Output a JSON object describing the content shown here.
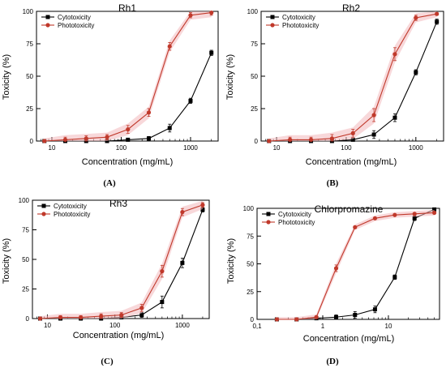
{
  "colors": {
    "cytotoxicity": "#000000",
    "phototoxicity": "#c0392b",
    "error_band": "#f2b8bc"
  },
  "chart_data": [
    {
      "type": "line",
      "panel_label": "(A)",
      "title": "Rh1",
      "xlabel": "Concentration (mg/mL)",
      "ylabel": "Toxicity (%)",
      "x_scale": "log",
      "xlim": [
        6,
        2500
      ],
      "ylim": [
        0,
        100
      ],
      "x_ticks": [
        10,
        100,
        1000
      ],
      "x_tick_labels": [
        "10",
        "100",
        "1000"
      ],
      "y_ticks": [
        0,
        25,
        50,
        75,
        100
      ],
      "y_tick_labels": [
        "0",
        "25",
        "50",
        "75",
        "100"
      ],
      "legend_position": "top-left",
      "series": [
        {
          "name": "Cytotoxicity",
          "marker": "square",
          "color": "#000000",
          "x": [
            7.8,
            15.6,
            31.25,
            62.5,
            125,
            250,
            500,
            1000,
            2000
          ],
          "y": [
            0,
            0,
            0,
            0,
            1,
            2,
            10,
            31,
            68
          ],
          "err": [
            0.5,
            0.5,
            0.5,
            0.5,
            1,
            1.5,
            3,
            2,
            2
          ]
        },
        {
          "name": "Phototoxicity",
          "marker": "circle",
          "color": "#c0392b",
          "x": [
            7.8,
            15.6,
            31.25,
            62.5,
            125,
            250,
            500,
            1000,
            2000
          ],
          "y": [
            0,
            1,
            2,
            3,
            9,
            22,
            73,
            97,
            99
          ],
          "err": [
            0.5,
            2,
            2,
            2,
            3,
            3,
            3,
            2,
            2
          ]
        }
      ]
    },
    {
      "type": "line",
      "panel_label": "(B)",
      "title": "Rh2",
      "xlabel": "Concentration (mg/mL)",
      "ylabel": "Toxicity (%)",
      "x_scale": "log",
      "xlim": [
        6,
        2500
      ],
      "ylim": [
        0,
        100
      ],
      "x_ticks": [
        10,
        100,
        1000
      ],
      "x_tick_labels": [
        "10",
        "100",
        "1000"
      ],
      "y_ticks": [
        0,
        25,
        50,
        75,
        100
      ],
      "y_tick_labels": [
        "0",
        "25",
        "50",
        "75",
        "100"
      ],
      "legend_position": "top-left",
      "series": [
        {
          "name": "Cytotoxicity",
          "marker": "square",
          "color": "#000000",
          "x": [
            7.8,
            15.6,
            31.25,
            62.5,
            125,
            250,
            500,
            1000,
            2000
          ],
          "y": [
            0,
            0,
            0,
            0,
            1,
            5,
            18,
            53,
            92
          ],
          "err": [
            0.5,
            0.5,
            0.5,
            0.5,
            1,
            3,
            3,
            2,
            2
          ]
        },
        {
          "name": "Phototoxicity",
          "marker": "circle",
          "color": "#c0392b",
          "x": [
            7.8,
            15.6,
            31.25,
            62.5,
            125,
            250,
            500,
            1000,
            2000
          ],
          "y": [
            0,
            1,
            1,
            2,
            6,
            20,
            67,
            95,
            98
          ],
          "err": [
            0.5,
            2,
            2,
            3,
            3,
            5,
            5,
            2,
            1
          ]
        }
      ]
    },
    {
      "type": "line",
      "panel_label": "(C)",
      "title": "Rh3",
      "xlabel": "Concentration (mg/mL)",
      "ylabel": "Toxicity (%)",
      "x_scale": "log",
      "xlim": [
        6,
        2500
      ],
      "ylim": [
        0,
        100
      ],
      "x_ticks": [
        10,
        100,
        1000
      ],
      "x_tick_labels": [
        "10",
        "100",
        "1000"
      ],
      "y_ticks": [
        0,
        25,
        50,
        75,
        100
      ],
      "y_tick_labels": [
        "0",
        "25",
        "50",
        "75",
        "100"
      ],
      "legend_position": "top-left",
      "series": [
        {
          "name": "Cytotoxicity",
          "marker": "square",
          "color": "#000000",
          "x": [
            7.8,
            15.6,
            31.25,
            62.5,
            125,
            250,
            500,
            1000,
            2000
          ],
          "y": [
            0,
            0,
            0,
            0,
            1,
            3,
            14,
            47,
            92
          ],
          "err": [
            0.5,
            0.5,
            0.5,
            0.5,
            1,
            2,
            5,
            4,
            2
          ]
        },
        {
          "name": "Phototoxicity",
          "marker": "circle",
          "color": "#c0392b",
          "x": [
            7.8,
            15.6,
            31.25,
            62.5,
            125,
            250,
            500,
            1000,
            2000
          ],
          "y": [
            0,
            1,
            1,
            2,
            3,
            9,
            40,
            90,
            96
          ],
          "err": [
            0.5,
            1.5,
            1.5,
            2,
            2,
            3,
            5,
            3,
            2
          ]
        }
      ]
    },
    {
      "type": "line",
      "panel_label": "(D)",
      "title": "Chlorpromazine",
      "xlabel": "Concentration (mg/mL)",
      "ylabel": "Toxicity (%)",
      "x_scale": "log",
      "xlim": [
        0.1,
        60
      ],
      "ylim": [
        0,
        100
      ],
      "x_ticks": [
        0.1,
        1,
        10
      ],
      "x_tick_labels": [
        "0,1",
        "1",
        "10"
      ],
      "y_ticks": [
        0,
        25,
        50,
        75,
        100
      ],
      "y_tick_labels": [
        "0",
        "25",
        "50",
        "75",
        "100"
      ],
      "legend_position": "top-left",
      "series": [
        {
          "name": "Cytotoxicity",
          "marker": "square",
          "color": "#000000",
          "x": [
            0.2,
            0.4,
            0.8,
            1.6,
            3.1,
            6.25,
            12.5,
            25,
            50
          ],
          "y": [
            0,
            0,
            1,
            2,
            4,
            9,
            38,
            91,
            99
          ],
          "err": [
            0.5,
            0.5,
            1,
            2,
            3,
            3,
            2,
            2,
            1
          ]
        },
        {
          "name": "Phototoxicity",
          "marker": "circle",
          "color": "#c0392b",
          "x": [
            0.2,
            0.4,
            0.8,
            1.6,
            3.1,
            6.25,
            12.5,
            25,
            50
          ],
          "y": [
            0,
            0,
            2,
            46,
            83,
            91,
            94,
            95,
            96
          ],
          "err": [
            0.5,
            0.5,
            1,
            3,
            1,
            1,
            1,
            1,
            1
          ]
        }
      ]
    }
  ]
}
